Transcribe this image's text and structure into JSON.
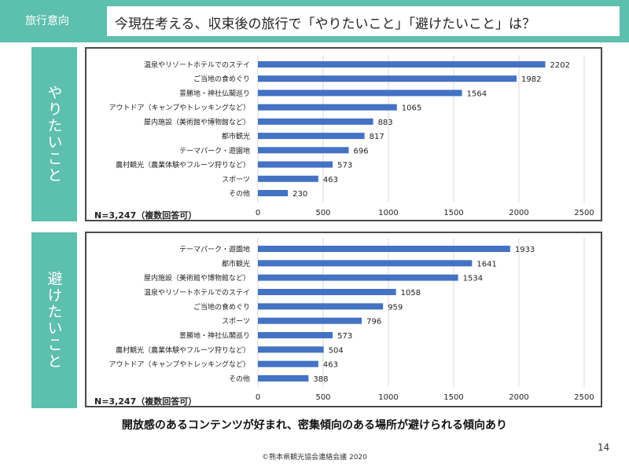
{
  "header": {
    "tag": "旅行意向",
    "title": "今現在考える、収束後の旅行で「やりたいこと」「避けたいこと」は？"
  },
  "chart_data": [
    {
      "type": "bar",
      "orientation": "horizontal",
      "side_label": "やりたいこと",
      "categories": [
        "温泉やリゾートホテルでのステイ",
        "ご当地の食めぐり",
        "景勝地・神社仏閣巡り",
        "アウトドア（キャンプやトレッキングなど）",
        "屋内施設（美術館や博物館など）",
        "都市観光",
        "テーマパーク・遊園地",
        "農村観光（農業体験やフルーツ狩りなど）",
        "スポーツ",
        "その他"
      ],
      "values": [
        2202,
        1982,
        1564,
        1065,
        883,
        817,
        696,
        573,
        463,
        230
      ],
      "xlim": [
        0,
        2500
      ],
      "xticks": [
        0,
        500,
        1000,
        1500,
        2000,
        2500
      ],
      "grid": true,
      "note": "N=3,247（複数回答可）",
      "color": "#4472c4"
    },
    {
      "type": "bar",
      "orientation": "horizontal",
      "side_label": "避けたいこと",
      "categories": [
        "テーマパーク・遊園地",
        "都市観光",
        "屋内施設（美術館や博物館など）",
        "温泉やリゾートホテルでのステイ",
        "ご当地の食めぐり",
        "スポーツ",
        "景勝地・神社仏閣巡り",
        "農村観光（農業体験やフルーツ狩りなど）",
        "アウトドア（キャンプやトレッキングなど）",
        "その他"
      ],
      "values": [
        1933,
        1641,
        1534,
        1058,
        959,
        796,
        573,
        504,
        463,
        388
      ],
      "xlim": [
        0,
        2500
      ],
      "xticks": [
        0,
        500,
        1000,
        1500,
        2000,
        2500
      ],
      "grid": true,
      "note": "N=3,247（複数回答可）",
      "color": "#4472c4"
    }
  ],
  "footer": {
    "conclusion": "開放感のあるコンテンツが好まれ、密集傾向のある場所が避けられる傾向あり",
    "copyright": "©熊本県観光協会連絡会議 2020",
    "page_number": "14"
  },
  "colors": {
    "accent": "#5dbfae",
    "bar": "#4472c4",
    "grid": "#d9d9d9",
    "frame": "#4a4a4a"
  }
}
